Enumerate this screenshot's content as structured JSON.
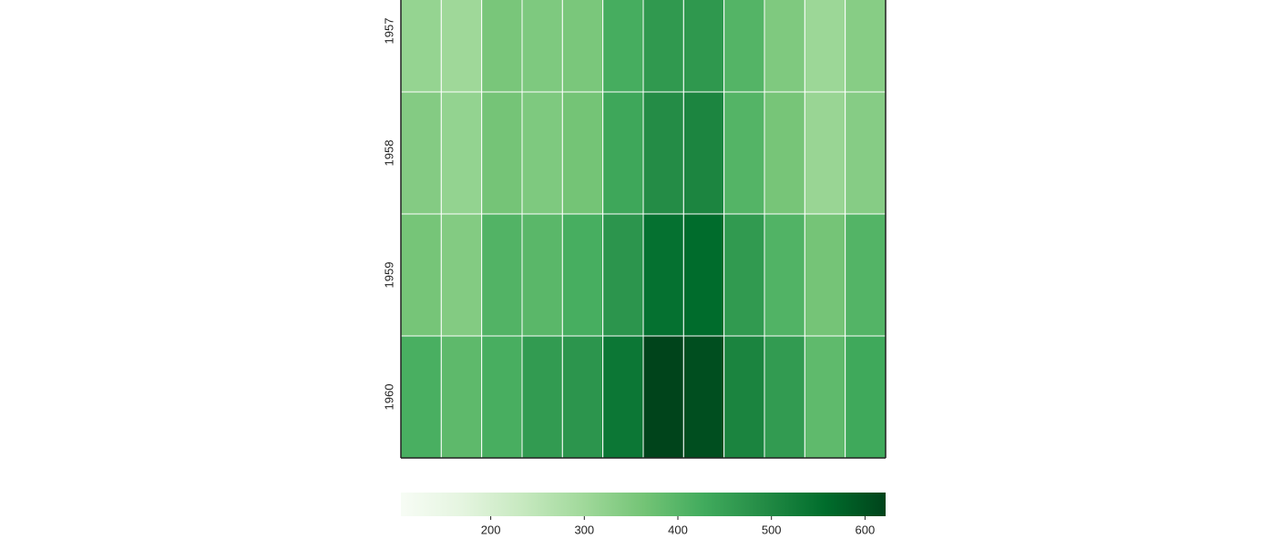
{
  "chart_data": {
    "type": "heatmap",
    "y_categories": [
      "1957",
      "1958",
      "1959",
      "1960"
    ],
    "values": [
      [
        315,
        301,
        356,
        348,
        355,
        422,
        465,
        467,
        404,
        347,
        305,
        336
      ],
      [
        340,
        318,
        362,
        348,
        363,
        435,
        491,
        505,
        404,
        359,
        310,
        337
      ],
      [
        360,
        342,
        406,
        396,
        420,
        472,
        548,
        559,
        463,
        407,
        362,
        405
      ],
      [
        417,
        391,
        419,
        461,
        472,
        535,
        622,
        606,
        508,
        461,
        390,
        432
      ]
    ],
    "colormap": "Greens",
    "clim": [
      104,
      622
    ],
    "cticks": [
      200,
      300,
      400,
      500,
      600
    ]
  }
}
